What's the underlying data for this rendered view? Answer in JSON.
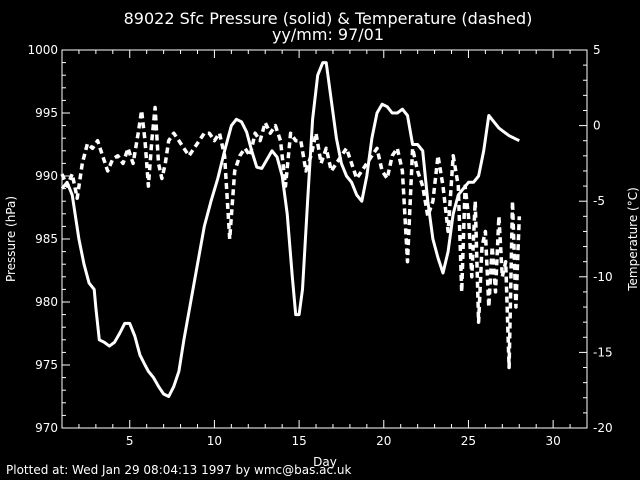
{
  "chart_data": {
    "type": "line",
    "title": "89022 Sfc Pressure (solid) & Temperature (dashed)",
    "subtitle": "yy/mm: 97/01",
    "xlabel": "Day",
    "ylabel_left": "Pressure (hPa)",
    "ylabel_right": "Temperature (°C)",
    "xlim": [
      1,
      32
    ],
    "ylim_left": [
      970,
      1000
    ],
    "ylim_right": [
      -20,
      5
    ],
    "x_ticks": [
      5,
      10,
      15,
      20,
      25,
      30
    ],
    "y_left_ticks": [
      970,
      975,
      980,
      985,
      990,
      995,
      1000
    ],
    "y_right_ticks": [
      -20,
      -15,
      -10,
      -5,
      0,
      5
    ],
    "footer": "Plotted at: Wed Jan 29 08:04:13 1997 by wmc@bas.ac.uk",
    "series": [
      {
        "name": "Pressure",
        "style": "solid",
        "axis": "left",
        "x": [
          1.0,
          1.3,
          1.6,
          2.0,
          2.3,
          2.6,
          2.9,
          3.0,
          3.2,
          3.5,
          3.8,
          4.1,
          4.4,
          4.7,
          5.0,
          5.3,
          5.6,
          5.9,
          6.1,
          6.4,
          6.7,
          7.0,
          7.3,
          7.6,
          7.9,
          8.2,
          8.6,
          9.0,
          9.4,
          9.8,
          10.2,
          10.6,
          11.0,
          11.3,
          11.6,
          11.9,
          12.2,
          12.5,
          12.8,
          13.1,
          13.4,
          13.7,
          14.0,
          14.3,
          14.6,
          14.8,
          15.0,
          15.2,
          15.5,
          15.8,
          16.1,
          16.4,
          16.6,
          16.9,
          17.2,
          17.5,
          17.8,
          18.1,
          18.4,
          18.7,
          19.0,
          19.3,
          19.6,
          19.9,
          20.2,
          20.5,
          20.8,
          21.1,
          21.4,
          21.7,
          22.0,
          22.3,
          22.6,
          22.9,
          23.2,
          23.5,
          23.8,
          24.1,
          24.4,
          24.7,
          25.0,
          25.3,
          25.6,
          25.9,
          26.2,
          26.5,
          26.8,
          27.1,
          27.4,
          27.7,
          28.0
        ],
        "y": [
          989.0,
          989.5,
          988.5,
          985.0,
          983.0,
          981.5,
          981.0,
          979.5,
          977.0,
          976.8,
          976.5,
          976.8,
          977.5,
          978.3,
          978.3,
          977.3,
          975.8,
          975.0,
          974.5,
          974.0,
          973.3,
          972.7,
          972.5,
          973.3,
          974.5,
          977.0,
          980.0,
          983.0,
          986.0,
          988.0,
          989.8,
          992.0,
          994.0,
          994.5,
          994.3,
          993.5,
          992.0,
          990.7,
          990.6,
          991.3,
          992.0,
          991.5,
          990.0,
          987.0,
          982.0,
          979.0,
          979.0,
          981.0,
          988.0,
          994.5,
          998.0,
          999.0,
          999.0,
          996.0,
          993.0,
          991.0,
          990.0,
          989.5,
          988.5,
          988.0,
          990.0,
          993.0,
          995.0,
          995.7,
          995.5,
          995.0,
          995.0,
          995.3,
          994.8,
          992.5,
          992.5,
          992.0,
          988.0,
          985.0,
          983.5,
          982.3,
          984.0,
          987.0,
          988.5,
          989.0,
          989.5,
          989.5,
          990.0,
          992.0,
          994.8,
          994.3,
          993.8,
          993.5,
          993.2,
          993.0,
          992.8
        ]
      },
      {
        "name": "Temperature",
        "style": "dashed",
        "axis": "right",
        "x": [
          1.0,
          1.3,
          1.6,
          1.9,
          2.2,
          2.5,
          2.8,
          3.1,
          3.4,
          3.7,
          4.0,
          4.3,
          4.6,
          4.9,
          5.2,
          5.5,
          5.7,
          5.9,
          6.1,
          6.3,
          6.5,
          6.7,
          6.9,
          7.1,
          7.3,
          7.6,
          7.9,
          8.2,
          8.5,
          8.8,
          9.1,
          9.4,
          9.7,
          10.0,
          10.3,
          10.6,
          10.9,
          11.2,
          11.5,
          11.8,
          12.1,
          12.4,
          12.7,
          13.0,
          13.3,
          13.6,
          13.9,
          14.2,
          14.5,
          14.8,
          15.1,
          15.4,
          15.7,
          16.0,
          16.3,
          16.6,
          16.9,
          17.2,
          17.5,
          17.8,
          18.1,
          18.4,
          18.7,
          19.0,
          19.3,
          19.6,
          19.9,
          20.2,
          20.5,
          20.8,
          21.1,
          21.4,
          21.7,
          22.0,
          22.3,
          22.6,
          22.9,
          23.2,
          23.5,
          23.8,
          24.1,
          24.4,
          24.6,
          24.8,
          25.0,
          25.2,
          25.4,
          25.6,
          25.8,
          26.0,
          26.2,
          26.4,
          26.6,
          26.8,
          27.0,
          27.2,
          27.4,
          27.6,
          27.8,
          28.0
        ],
        "y": [
          -3.2,
          -4.0,
          -3.2,
          -4.8,
          -2.5,
          -1.2,
          -1.5,
          -1.0,
          -2.0,
          -3.0,
          -2.2,
          -2.0,
          -2.5,
          -1.5,
          -2.5,
          -0.5,
          1.0,
          -1.0,
          -4.0,
          -1.0,
          1.2,
          -2.5,
          -3.5,
          -2.5,
          -1.0,
          -0.5,
          -1.0,
          -1.5,
          -2.0,
          -1.5,
          -1.0,
          -0.5,
          -0.5,
          -1.0,
          -0.5,
          -2.0,
          -7.5,
          -3.0,
          -2.0,
          -1.5,
          -2.0,
          -0.5,
          -1.0,
          0.2,
          -0.5,
          0.0,
          -1.0,
          -4.0,
          -0.5,
          -1.0,
          -1.0,
          -3.0,
          -2.0,
          -0.5,
          -2.5,
          -1.5,
          -3.0,
          -2.5,
          -2.0,
          -1.5,
          -2.5,
          -3.5,
          -3.0,
          -2.5,
          -2.0,
          -1.5,
          -3.0,
          -3.5,
          -2.0,
          -1.5,
          -3.0,
          -9.0,
          -1.5,
          -3.0,
          -4.0,
          -6.0,
          -5.0,
          -2.0,
          -4.0,
          -7.0,
          -2.0,
          -4.0,
          -11.0,
          -4.0,
          -6.0,
          -10.0,
          -5.0,
          -13.0,
          -8.0,
          -7.0,
          -12.0,
          -8.0,
          -11.0,
          -6.0,
          -10.0,
          -9.0,
          -16.0,
          -5.0,
          -12.0,
          -6.0
        ]
      }
    ]
  }
}
